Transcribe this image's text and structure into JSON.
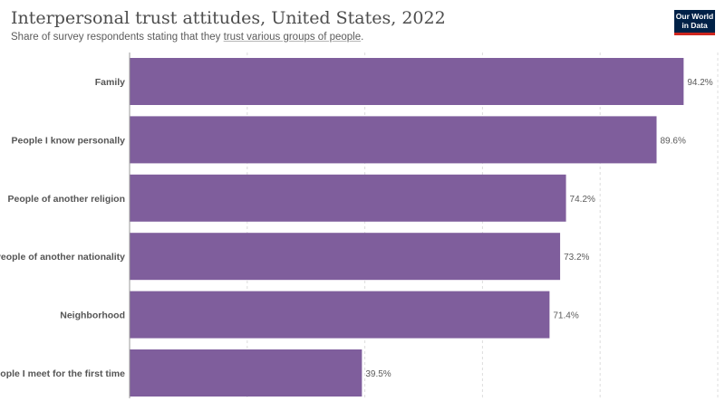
{
  "header": {
    "title": "Interpersonal trust attitudes, United States, 2022",
    "subtitle_prefix": "Share of survey respondents stating that they ",
    "subtitle_link": "trust various groups of people",
    "subtitle_suffix": ".",
    "logo_line1": "Our World",
    "logo_line2": "in Data"
  },
  "chart_data": {
    "type": "bar",
    "orientation": "horizontal",
    "title": "Interpersonal trust attitudes, United States, 2022",
    "subtitle": "Share of survey respondents stating that they trust various groups of people.",
    "unit": "%",
    "xlim": [
      0,
      100
    ],
    "gridlines": [
      0,
      20,
      40,
      60,
      80,
      100
    ],
    "grid": true,
    "bar_color": "#7f5e9c",
    "categories": [
      "Family",
      "People I know personally",
      "People of another religion",
      "People of another nationality",
      "Neighborhood",
      "People I meet for the first time"
    ],
    "values": [
      94.2,
      89.6,
      74.2,
      73.2,
      71.4,
      39.5
    ],
    "value_labels": [
      "94.2%",
      "89.6%",
      "74.2%",
      "73.2%",
      "71.4%",
      "39.5%"
    ]
  }
}
